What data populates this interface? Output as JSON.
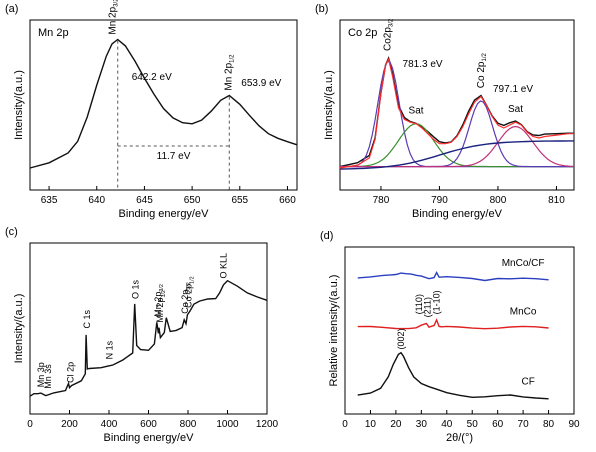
{
  "chart_data": [
    {
      "panel": "(a)",
      "type": "line",
      "inset_label": "Mn 2p",
      "xlabel": "Binding energy/eV",
      "ylabel": "Intensity/(a.u.)",
      "xlim": [
        633,
        661
      ],
      "x_ticks": [
        635,
        640,
        645,
        650,
        655,
        660
      ],
      "series": [
        {
          "x": [
            633,
            635,
            637,
            638,
            639,
            640,
            641,
            641.6,
            642.2,
            643,
            644,
            645,
            646,
            647,
            648,
            649,
            650,
            651,
            652,
            653,
            653.9,
            655,
            656,
            657,
            658,
            659,
            660,
            661
          ],
          "y": [
            0.05,
            0.08,
            0.15,
            0.24,
            0.42,
            0.65,
            0.85,
            0.93,
            0.96,
            0.92,
            0.82,
            0.7,
            0.58,
            0.47,
            0.4,
            0.37,
            0.37,
            0.4,
            0.46,
            0.53,
            0.56,
            0.5,
            0.43,
            0.36,
            0.3,
            0.26,
            0.23,
            0.21
          ]
        }
      ],
      "annotations": [
        {
          "text": "Mn 2p",
          "sub": "3/2",
          "x": 642.2
        },
        {
          "text": "642.2 eV",
          "x": 642.2
        },
        {
          "text": "Mn 2p",
          "sub": "1/2",
          "x": 653.9
        },
        {
          "text": "653.9 eV",
          "x": 653.9
        },
        {
          "text": "11.7 eV"
        }
      ]
    },
    {
      "panel": "(b)",
      "type": "line",
      "inset_label": "Co 2p",
      "xlabel": "Binding energy/eV",
      "ylabel": "Intensity/(a.u.)",
      "xlim": [
        773,
        813
      ],
      "x_ticks": [
        780,
        790,
        800,
        810
      ],
      "colors": {
        "raw": "#111111",
        "fit": "#ff2b2b",
        "background": "#1a237e",
        "peak_main": "#5a3bb3",
        "peak_sat": "#3a8f2e",
        "peak_sat2": "#c0307a"
      },
      "series": [
        {
          "x": [
            773,
            776,
            778,
            779,
            780,
            780.8,
            781.3,
            782,
            783,
            784,
            785,
            786,
            787,
            788,
            789,
            790,
            791,
            792,
            793,
            794,
            795,
            796,
            797.1,
            798,
            799,
            800,
            801,
            802,
            803,
            804,
            805,
            806,
            807,
            808,
            810,
            812,
            813
          ],
          "y": [
            0.08,
            0.1,
            0.15,
            0.28,
            0.6,
            0.8,
            0.84,
            0.72,
            0.5,
            0.42,
            0.4,
            0.39,
            0.36,
            0.32,
            0.28,
            0.25,
            0.25,
            0.26,
            0.3,
            0.37,
            0.46,
            0.54,
            0.58,
            0.52,
            0.44,
            0.38,
            0.36,
            0.38,
            0.4,
            0.38,
            0.33,
            0.3,
            0.29,
            0.3,
            0.31,
            0.32,
            0.32
          ]
        }
      ],
      "annotations": [
        {
          "text": "Co2p",
          "sub": "3/2",
          "x": 781.3
        },
        {
          "text": "781.3 eV",
          "x": 781.3
        },
        {
          "text": "Sat",
          "x": 786
        },
        {
          "text": "Co 2p",
          "sub": "1/2",
          "x": 797.1
        },
        {
          "text": "797.1 eV",
          "x": 797.1
        },
        {
          "text": "Sat",
          "x": 803
        }
      ]
    },
    {
      "panel": "(c)",
      "type": "line",
      "xlabel": "Binding energy/eV",
      "ylabel": "Intensity/(a.u.)",
      "xlim": [
        0,
        1200
      ],
      "x_ticks": [
        0,
        200,
        400,
        600,
        800,
        1000,
        1200
      ],
      "series": [
        {
          "x": [
            0,
            20,
            40,
            55,
            80,
            120,
            180,
            195,
            200,
            210,
            260,
            280,
            284,
            290,
            300,
            360,
            398,
            420,
            470,
            520,
            530,
            540,
            560,
            600,
            630,
            642,
            650,
            653,
            660,
            680,
            690,
            710,
            740,
            770,
            781,
            790,
            797,
            810,
            830,
            860,
            900,
            940,
            960,
            980,
            1000,
            1050,
            1100,
            1150,
            1200
          ],
          "y": [
            0.06,
            0.07,
            0.07,
            0.08,
            0.07,
            0.09,
            0.1,
            0.14,
            0.11,
            0.13,
            0.17,
            0.22,
            0.48,
            0.24,
            0.24,
            0.25,
            0.27,
            0.28,
            0.31,
            0.35,
            0.68,
            0.4,
            0.38,
            0.38,
            0.42,
            0.56,
            0.48,
            0.52,
            0.46,
            0.5,
            0.6,
            0.5,
            0.5,
            0.52,
            0.58,
            0.56,
            0.62,
            0.64,
            0.68,
            0.7,
            0.72,
            0.73,
            0.77,
            0.82,
            0.84,
            0.8,
            0.76,
            0.74,
            0.72
          ]
        }
      ],
      "annotations": [
        {
          "text": "Mn 3p",
          "x": 50
        },
        {
          "text": "Mn 3s",
          "x": 85
        },
        {
          "text": "Cl 2p",
          "x": 200
        },
        {
          "text": "C 1s",
          "x": 284
        },
        {
          "text": "N 1s",
          "x": 398
        },
        {
          "text": "O 1s",
          "x": 530
        },
        {
          "text": "Mn 2p",
          "sub": "3/2",
          "x": 642
        },
        {
          "text": "Mn 2p",
          "sub": "1/2",
          "x": 653
        },
        {
          "text": "Co 2p",
          "sub": "3/2",
          "x": 781
        },
        {
          "text": "Co 2p",
          "sub": "1/2",
          "x": 797
        },
        {
          "text": "O KLL",
          "x": 975
        }
      ]
    },
    {
      "panel": "(d)",
      "type": "line",
      "xlabel": "2θ/(°)",
      "ylabel": "Relative intensity/(a.u.)",
      "xlim": [
        0,
        90
      ],
      "x_ticks": [
        0,
        10,
        20,
        30,
        40,
        50,
        60,
        70,
        80,
        90
      ],
      "series": [
        {
          "name": "MnCo/CF",
          "color": "#2b3fbf",
          "x": [
            5,
            10,
            15,
            18,
            20,
            22,
            24,
            26,
            28,
            30,
            33,
            35,
            36,
            37,
            40,
            45,
            50,
            55,
            60,
            65,
            70,
            75,
            80
          ],
          "y": [
            0.85,
            0.85,
            0.86,
            0.87,
            0.88,
            0.89,
            0.88,
            0.87,
            0.86,
            0.86,
            0.85,
            0.86,
            0.89,
            0.85,
            0.85,
            0.85,
            0.85,
            0.84,
            0.85,
            0.84,
            0.84,
            0.84,
            0.84
          ]
        },
        {
          "name": "MnCo",
          "color": "#e02020",
          "x": [
            5,
            10,
            15,
            20,
            25,
            28,
            30,
            32,
            33,
            35,
            36,
            37,
            38,
            40,
            45,
            50,
            55,
            60,
            65,
            70,
            75,
            80
          ],
          "y": [
            0.51,
            0.51,
            0.51,
            0.51,
            0.51,
            0.51,
            0.52,
            0.53,
            0.51,
            0.53,
            0.57,
            0.52,
            0.51,
            0.51,
            0.51,
            0.51,
            0.51,
            0.51,
            0.51,
            0.51,
            0.51,
            0.51
          ]
        },
        {
          "name": "CF",
          "color": "#111111",
          "x": [
            5,
            10,
            14,
            17,
            19,
            21,
            22,
            23,
            25,
            27,
            30,
            33,
            36,
            40,
            45,
            50,
            55,
            60,
            65,
            70,
            75,
            80
          ],
          "y": [
            0.04,
            0.06,
            0.1,
            0.18,
            0.26,
            0.32,
            0.33,
            0.31,
            0.24,
            0.18,
            0.13,
            0.1,
            0.08,
            0.06,
            0.05,
            0.04,
            0.04,
            0.04,
            0.04,
            0.03,
            0.03,
            0.03
          ]
        }
      ],
      "annotations": [
        {
          "text": "(002)",
          "x": 22
        },
        {
          "text": "(110)",
          "x": 29
        },
        {
          "text": "(211)",
          "x": 32.5
        },
        {
          "text": "(1-10)",
          "x": 36
        }
      ]
    }
  ]
}
